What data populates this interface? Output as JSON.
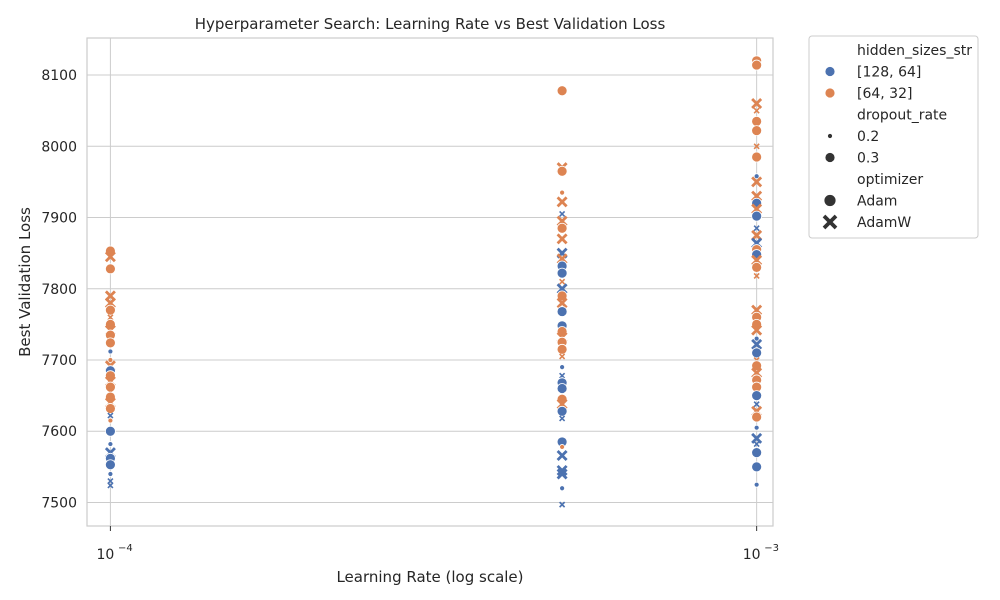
{
  "chart_data": {
    "type": "scatter",
    "title": "Hyperparameter Search: Learning Rate vs Best Validation Loss",
    "xlabel": "Learning Rate (log scale)",
    "ylabel": "Best Validation Loss",
    "x_scale": "log",
    "x_ticks": [
      {
        "value": 0.0001,
        "base": "10",
        "exp": "−4"
      },
      {
        "value": 0.001,
        "base": "10",
        "exp": "−3"
      }
    ],
    "xlim": [
      9.2e-05,
      0.00106
    ],
    "y_ticks": [
      7500,
      7600,
      7700,
      7800,
      7900,
      8000,
      8100
    ],
    "ylim": [
      7467,
      8152
    ],
    "grid": true,
    "legend": {
      "placement": "outside-right",
      "groups": [
        {
          "title": "hidden_sizes_str",
          "entries": [
            {
              "label": "[128, 64]",
              "marker": "circle",
              "color": "#4c72b0",
              "size": 10
            },
            {
              "label": "[64, 32]",
              "marker": "circle",
              "color": "#dd8452",
              "size": 10
            }
          ]
        },
        {
          "title": "dropout_rate",
          "entries": [
            {
              "label": "0.2",
              "marker": "circle",
              "color": "#333333",
              "size": 5
            },
            {
              "label": "0.3",
              "marker": "circle",
              "color": "#333333",
              "size": 10
            }
          ]
        },
        {
          "title": "optimizer",
          "entries": [
            {
              "label": "Adam",
              "marker": "circle",
              "color": "#333333",
              "size": 12
            },
            {
              "label": "AdamW",
              "marker": "x",
              "color": "#333333",
              "size": 12
            }
          ]
        }
      ]
    },
    "series_styles": {
      "[128, 64]": "#4c72b0",
      "[64, 32]": "#dd8452"
    },
    "points": [
      {
        "x": 0.0001,
        "y": 7853,
        "hidden": "[64, 32]",
        "dropout": 0.3,
        "opt": "Adam"
      },
      {
        "x": 0.0001,
        "y": 7845,
        "hidden": "[64, 32]",
        "dropout": 0.3,
        "opt": "AdamW"
      },
      {
        "x": 0.0001,
        "y": 7828,
        "hidden": "[64, 32]",
        "dropout": 0.3,
        "opt": "Adam"
      },
      {
        "x": 0.0001,
        "y": 7790,
        "hidden": "[64, 32]",
        "dropout": 0.3,
        "opt": "AdamW"
      },
      {
        "x": 0.0001,
        "y": 7780,
        "hidden": "[64, 32]",
        "dropout": 0.3,
        "opt": "AdamW"
      },
      {
        "x": 0.0001,
        "y": 7770,
        "hidden": "[64, 32]",
        "dropout": 0.3,
        "opt": "Adam"
      },
      {
        "x": 0.0001,
        "y": 7760,
        "hidden": "[64, 32]",
        "dropout": 0.2,
        "opt": "AdamW"
      },
      {
        "x": 0.0001,
        "y": 7750,
        "hidden": "[64, 32]",
        "dropout": 0.3,
        "opt": "Adam"
      },
      {
        "x": 0.0001,
        "y": 7742,
        "hidden": "[64, 32]",
        "dropout": 0.3,
        "opt": "AdamW"
      },
      {
        "x": 0.0001,
        "y": 7735,
        "hidden": "[64, 32]",
        "dropout": 0.3,
        "opt": "Adam"
      },
      {
        "x": 0.0001,
        "y": 7724,
        "hidden": "[64, 32]",
        "dropout": 0.3,
        "opt": "Adam"
      },
      {
        "x": 0.0001,
        "y": 7712,
        "hidden": "[128, 64]",
        "dropout": 0.2,
        "opt": "Adam"
      },
      {
        "x": 0.0001,
        "y": 7700,
        "hidden": "[64, 32]",
        "dropout": 0.2,
        "opt": "Adam"
      },
      {
        "x": 0.0001,
        "y": 7692,
        "hidden": "[64, 32]",
        "dropout": 0.3,
        "opt": "AdamW"
      },
      {
        "x": 0.0001,
        "y": 7685,
        "hidden": "[128, 64]",
        "dropout": 0.3,
        "opt": "Adam"
      },
      {
        "x": 0.0001,
        "y": 7678,
        "hidden": "[64, 32]",
        "dropout": 0.3,
        "opt": "Adam"
      },
      {
        "x": 0.0001,
        "y": 7670,
        "hidden": "[64, 32]",
        "dropout": 0.3,
        "opt": "AdamW"
      },
      {
        "x": 0.0001,
        "y": 7662,
        "hidden": "[64, 32]",
        "dropout": 0.3,
        "opt": "Adam"
      },
      {
        "x": 0.0001,
        "y": 7655,
        "hidden": "[64, 32]",
        "dropout": 0.2,
        "opt": "AdamW"
      },
      {
        "x": 0.0001,
        "y": 7648,
        "hidden": "[64, 32]",
        "dropout": 0.3,
        "opt": "Adam"
      },
      {
        "x": 0.0001,
        "y": 7640,
        "hidden": "[64, 32]",
        "dropout": 0.3,
        "opt": "AdamW"
      },
      {
        "x": 0.0001,
        "y": 7632,
        "hidden": "[64, 32]",
        "dropout": 0.3,
        "opt": "Adam"
      },
      {
        "x": 0.0001,
        "y": 7622,
        "hidden": "[128, 64]",
        "dropout": 0.2,
        "opt": "AdamW"
      },
      {
        "x": 0.0001,
        "y": 7615,
        "hidden": "[64, 32]",
        "dropout": 0.2,
        "opt": "Adam"
      },
      {
        "x": 0.0001,
        "y": 7600,
        "hidden": "[128, 64]",
        "dropout": 0.3,
        "opt": "Adam"
      },
      {
        "x": 0.0001,
        "y": 7582,
        "hidden": "[128, 64]",
        "dropout": 0.2,
        "opt": "Adam"
      },
      {
        "x": 0.0001,
        "y": 7570,
        "hidden": "[128, 64]",
        "dropout": 0.3,
        "opt": "AdamW"
      },
      {
        "x": 0.0001,
        "y": 7562,
        "hidden": "[128, 64]",
        "dropout": 0.3,
        "opt": "Adam"
      },
      {
        "x": 0.0001,
        "y": 7553,
        "hidden": "[128, 64]",
        "dropout": 0.3,
        "opt": "Adam"
      },
      {
        "x": 0.0001,
        "y": 7540,
        "hidden": "[128, 64]",
        "dropout": 0.2,
        "opt": "Adam"
      },
      {
        "x": 0.0001,
        "y": 7530,
        "hidden": "[128, 64]",
        "dropout": 0.2,
        "opt": "AdamW"
      },
      {
        "x": 0.0001,
        "y": 7524,
        "hidden": "[128, 64]",
        "dropout": 0.2,
        "opt": "AdamW"
      },
      {
        "x": 0.0005,
        "y": 8078,
        "hidden": "[64, 32]",
        "dropout": 0.3,
        "opt": "Adam"
      },
      {
        "x": 0.0005,
        "y": 7970,
        "hidden": "[64, 32]",
        "dropout": 0.3,
        "opt": "AdamW"
      },
      {
        "x": 0.0005,
        "y": 7965,
        "hidden": "[64, 32]",
        "dropout": 0.3,
        "opt": "Adam"
      },
      {
        "x": 0.0005,
        "y": 7935,
        "hidden": "[64, 32]",
        "dropout": 0.2,
        "opt": "Adam"
      },
      {
        "x": 0.0005,
        "y": 7922,
        "hidden": "[64, 32]",
        "dropout": 0.3,
        "opt": "AdamW"
      },
      {
        "x": 0.0005,
        "y": 7905,
        "hidden": "[128, 64]",
        "dropout": 0.2,
        "opt": "AdamW"
      },
      {
        "x": 0.0005,
        "y": 7895,
        "hidden": "[64, 32]",
        "dropout": 0.3,
        "opt": "AdamW"
      },
      {
        "x": 0.0005,
        "y": 7885,
        "hidden": "[64, 32]",
        "dropout": 0.3,
        "opt": "Adam"
      },
      {
        "x": 0.0005,
        "y": 7870,
        "hidden": "[64, 32]",
        "dropout": 0.3,
        "opt": "AdamW"
      },
      {
        "x": 0.0005,
        "y": 7850,
        "hidden": "[128, 64]",
        "dropout": 0.3,
        "opt": "AdamW"
      },
      {
        "x": 0.0005,
        "y": 7842,
        "hidden": "[64, 32]",
        "dropout": 0.3,
        "opt": "AdamW"
      },
      {
        "x": 0.0005,
        "y": 7832,
        "hidden": "[128, 64]",
        "dropout": 0.3,
        "opt": "Adam"
      },
      {
        "x": 0.0005,
        "y": 7822,
        "hidden": "[128, 64]",
        "dropout": 0.3,
        "opt": "Adam"
      },
      {
        "x": 0.0005,
        "y": 7810,
        "hidden": "[64, 32]",
        "dropout": 0.2,
        "opt": "AdamW"
      },
      {
        "x": 0.0005,
        "y": 7800,
        "hidden": "[128, 64]",
        "dropout": 0.3,
        "opt": "AdamW"
      },
      {
        "x": 0.0005,
        "y": 7790,
        "hidden": "[64, 32]",
        "dropout": 0.3,
        "opt": "Adam"
      },
      {
        "x": 0.0005,
        "y": 7780,
        "hidden": "[64, 32]",
        "dropout": 0.3,
        "opt": "AdamW"
      },
      {
        "x": 0.0005,
        "y": 7768,
        "hidden": "[128, 64]",
        "dropout": 0.3,
        "opt": "Adam"
      },
      {
        "x": 0.0005,
        "y": 7748,
        "hidden": "[128, 64]",
        "dropout": 0.3,
        "opt": "Adam"
      },
      {
        "x": 0.0005,
        "y": 7740,
        "hidden": "[64, 32]",
        "dropout": 0.3,
        "opt": "Adam"
      },
      {
        "x": 0.0005,
        "y": 7732,
        "hidden": "[64, 32]",
        "dropout": 0.3,
        "opt": "AdamW"
      },
      {
        "x": 0.0005,
        "y": 7725,
        "hidden": "[64, 32]",
        "dropout": 0.3,
        "opt": "Adam"
      },
      {
        "x": 0.0005,
        "y": 7715,
        "hidden": "[64, 32]",
        "dropout": 0.3,
        "opt": "Adam"
      },
      {
        "x": 0.0005,
        "y": 7705,
        "hidden": "[64, 32]",
        "dropout": 0.2,
        "opt": "AdamW"
      },
      {
        "x": 0.0005,
        "y": 7690,
        "hidden": "[128, 64]",
        "dropout": 0.2,
        "opt": "Adam"
      },
      {
        "x": 0.0005,
        "y": 7678,
        "hidden": "[128, 64]",
        "dropout": 0.2,
        "opt": "AdamW"
      },
      {
        "x": 0.0005,
        "y": 7668,
        "hidden": "[128, 64]",
        "dropout": 0.3,
        "opt": "Adam"
      },
      {
        "x": 0.0005,
        "y": 7660,
        "hidden": "[128, 64]",
        "dropout": 0.3,
        "opt": "Adam"
      },
      {
        "x": 0.0005,
        "y": 7645,
        "hidden": "[64, 32]",
        "dropout": 0.3,
        "opt": "Adam"
      },
      {
        "x": 0.0005,
        "y": 7638,
        "hidden": "[64, 32]",
        "dropout": 0.3,
        "opt": "AdamW"
      },
      {
        "x": 0.0005,
        "y": 7628,
        "hidden": "[128, 64]",
        "dropout": 0.3,
        "opt": "Adam"
      },
      {
        "x": 0.0005,
        "y": 7618,
        "hidden": "[128, 64]",
        "dropout": 0.2,
        "opt": "AdamW"
      },
      {
        "x": 0.0005,
        "y": 7585,
        "hidden": "[128, 64]",
        "dropout": 0.3,
        "opt": "Adam"
      },
      {
        "x": 0.0005,
        "y": 7578,
        "hidden": "[64, 32]",
        "dropout": 0.2,
        "opt": "Adam"
      },
      {
        "x": 0.0005,
        "y": 7566,
        "hidden": "[128, 64]",
        "dropout": 0.3,
        "opt": "AdamW"
      },
      {
        "x": 0.0005,
        "y": 7545,
        "hidden": "[128, 64]",
        "dropout": 0.3,
        "opt": "AdamW"
      },
      {
        "x": 0.0005,
        "y": 7540,
        "hidden": "[128, 64]",
        "dropout": 0.3,
        "opt": "AdamW"
      },
      {
        "x": 0.0005,
        "y": 7520,
        "hidden": "[128, 64]",
        "dropout": 0.2,
        "opt": "Adam"
      },
      {
        "x": 0.0005,
        "y": 7497,
        "hidden": "[128, 64]",
        "dropout": 0.2,
        "opt": "AdamW"
      },
      {
        "x": 0.001,
        "y": 8120,
        "hidden": "[64, 32]",
        "dropout": 0.3,
        "opt": "Adam"
      },
      {
        "x": 0.001,
        "y": 8114,
        "hidden": "[64, 32]",
        "dropout": 0.3,
        "opt": "Adam"
      },
      {
        "x": 0.001,
        "y": 8060,
        "hidden": "[64, 32]",
        "dropout": 0.3,
        "opt": "AdamW"
      },
      {
        "x": 0.001,
        "y": 8050,
        "hidden": "[64, 32]",
        "dropout": 0.2,
        "opt": "AdamW"
      },
      {
        "x": 0.001,
        "y": 8035,
        "hidden": "[64, 32]",
        "dropout": 0.3,
        "opt": "Adam"
      },
      {
        "x": 0.001,
        "y": 8022,
        "hidden": "[64, 32]",
        "dropout": 0.3,
        "opt": "Adam"
      },
      {
        "x": 0.001,
        "y": 8000,
        "hidden": "[64, 32]",
        "dropout": 0.2,
        "opt": "AdamW"
      },
      {
        "x": 0.001,
        "y": 7985,
        "hidden": "[64, 32]",
        "dropout": 0.3,
        "opt": "Adam"
      },
      {
        "x": 0.001,
        "y": 7958,
        "hidden": "[128, 64]",
        "dropout": 0.2,
        "opt": "Adam"
      },
      {
        "x": 0.001,
        "y": 7950,
        "hidden": "[64, 32]",
        "dropout": 0.3,
        "opt": "AdamW"
      },
      {
        "x": 0.001,
        "y": 7930,
        "hidden": "[64, 32]",
        "dropout": 0.3,
        "opt": "AdamW"
      },
      {
        "x": 0.001,
        "y": 7920,
        "hidden": "[128, 64]",
        "dropout": 0.3,
        "opt": "Adam"
      },
      {
        "x": 0.001,
        "y": 7912,
        "hidden": "[64, 32]",
        "dropout": 0.3,
        "opt": "AdamW"
      },
      {
        "x": 0.001,
        "y": 7902,
        "hidden": "[128, 64]",
        "dropout": 0.3,
        "opt": "Adam"
      },
      {
        "x": 0.001,
        "y": 7885,
        "hidden": "[128, 64]",
        "dropout": 0.2,
        "opt": "AdamW"
      },
      {
        "x": 0.001,
        "y": 7875,
        "hidden": "[64, 32]",
        "dropout": 0.3,
        "opt": "AdamW"
      },
      {
        "x": 0.001,
        "y": 7864,
        "hidden": "[128, 64]",
        "dropout": 0.3,
        "opt": "AdamW"
      },
      {
        "x": 0.001,
        "y": 7855,
        "hidden": "[64, 32]",
        "dropout": 0.3,
        "opt": "Adam"
      },
      {
        "x": 0.001,
        "y": 7848,
        "hidden": "[128, 64]",
        "dropout": 0.3,
        "opt": "Adam"
      },
      {
        "x": 0.001,
        "y": 7840,
        "hidden": "[64, 32]",
        "dropout": 0.3,
        "opt": "AdamW"
      },
      {
        "x": 0.001,
        "y": 7830,
        "hidden": "[64, 32]",
        "dropout": 0.3,
        "opt": "Adam"
      },
      {
        "x": 0.001,
        "y": 7818,
        "hidden": "[64, 32]",
        "dropout": 0.2,
        "opt": "AdamW"
      },
      {
        "x": 0.001,
        "y": 7770,
        "hidden": "[64, 32]",
        "dropout": 0.3,
        "opt": "AdamW"
      },
      {
        "x": 0.001,
        "y": 7760,
        "hidden": "[64, 32]",
        "dropout": 0.3,
        "opt": "Adam"
      },
      {
        "x": 0.001,
        "y": 7750,
        "hidden": "[64, 32]",
        "dropout": 0.3,
        "opt": "Adam"
      },
      {
        "x": 0.001,
        "y": 7742,
        "hidden": "[64, 32]",
        "dropout": 0.3,
        "opt": "AdamW"
      },
      {
        "x": 0.001,
        "y": 7730,
        "hidden": "[128, 64]",
        "dropout": 0.2,
        "opt": "Adam"
      },
      {
        "x": 0.001,
        "y": 7722,
        "hidden": "[128, 64]",
        "dropout": 0.3,
        "opt": "AdamW"
      },
      {
        "x": 0.001,
        "y": 7710,
        "hidden": "[128, 64]",
        "dropout": 0.3,
        "opt": "Adam"
      },
      {
        "x": 0.001,
        "y": 7700,
        "hidden": "[64, 32]",
        "dropout": 0.2,
        "opt": "AdamW"
      },
      {
        "x": 0.001,
        "y": 7692,
        "hidden": "[64, 32]",
        "dropout": 0.3,
        "opt": "Adam"
      },
      {
        "x": 0.001,
        "y": 7682,
        "hidden": "[64, 32]",
        "dropout": 0.3,
        "opt": "AdamW"
      },
      {
        "x": 0.001,
        "y": 7672,
        "hidden": "[64, 32]",
        "dropout": 0.3,
        "opt": "Adam"
      },
      {
        "x": 0.001,
        "y": 7662,
        "hidden": "[64, 32]",
        "dropout": 0.3,
        "opt": "Adam"
      },
      {
        "x": 0.001,
        "y": 7650,
        "hidden": "[128, 64]",
        "dropout": 0.3,
        "opt": "Adam"
      },
      {
        "x": 0.001,
        "y": 7638,
        "hidden": "[128, 64]",
        "dropout": 0.2,
        "opt": "AdamW"
      },
      {
        "x": 0.001,
        "y": 7628,
        "hidden": "[64, 32]",
        "dropout": 0.3,
        "opt": "AdamW"
      },
      {
        "x": 0.001,
        "y": 7620,
        "hidden": "[64, 32]",
        "dropout": 0.3,
        "opt": "Adam"
      },
      {
        "x": 0.001,
        "y": 7605,
        "hidden": "[128, 64]",
        "dropout": 0.2,
        "opt": "Adam"
      },
      {
        "x": 0.001,
        "y": 7590,
        "hidden": "[128, 64]",
        "dropout": 0.3,
        "opt": "AdamW"
      },
      {
        "x": 0.001,
        "y": 7582,
        "hidden": "[128, 64]",
        "dropout": 0.2,
        "opt": "AdamW"
      },
      {
        "x": 0.001,
        "y": 7570,
        "hidden": "[128, 64]",
        "dropout": 0.3,
        "opt": "Adam"
      },
      {
        "x": 0.001,
        "y": 7550,
        "hidden": "[128, 64]",
        "dropout": 0.3,
        "opt": "Adam"
      },
      {
        "x": 0.001,
        "y": 7525,
        "hidden": "[128, 64]",
        "dropout": 0.2,
        "opt": "Adam"
      }
    ]
  }
}
